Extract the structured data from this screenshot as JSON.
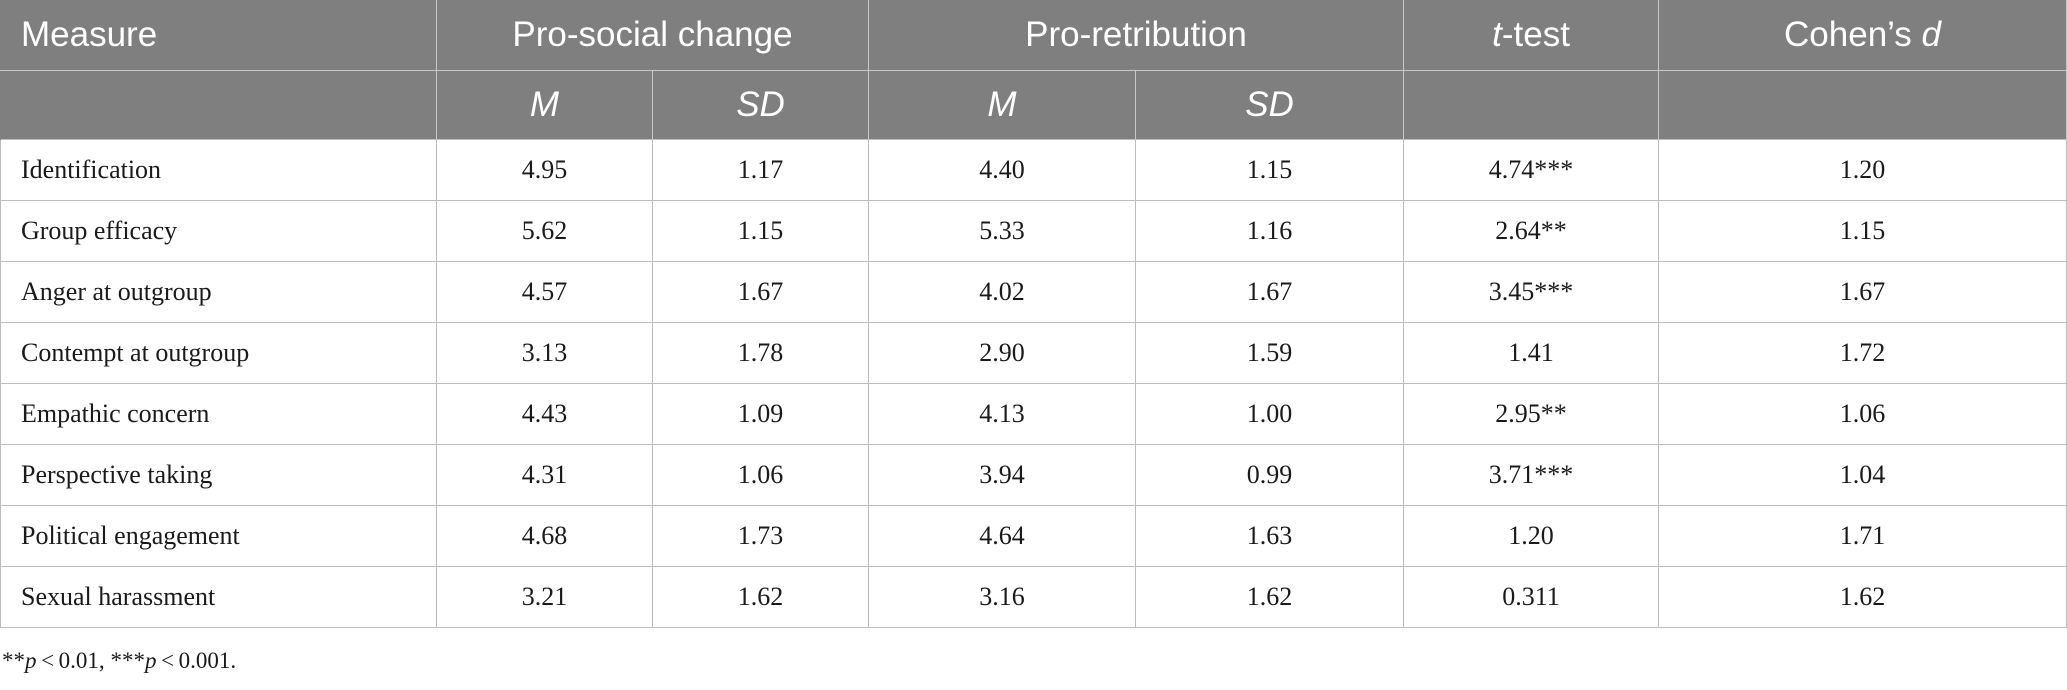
{
  "header": {
    "measure": "Measure",
    "pro_social": "Pro-social change",
    "pro_retribution": "Pro-retribution",
    "ttest_t": "t",
    "ttest_rest": "-test",
    "cohens_prefix": "Cohen’s ",
    "cohens_d": "d",
    "sub_m1": "M",
    "sub_sd1": "SD",
    "sub_m2": "M",
    "sub_sd2": "SD"
  },
  "rows": [
    {
      "measure": "Identification",
      "ps_m": "4.95",
      "ps_sd": "1.17",
      "pr_m": "4.40",
      "pr_sd": "1.15",
      "t": "4.74***",
      "d": "1.20"
    },
    {
      "measure": "Group efficacy",
      "ps_m": "5.62",
      "ps_sd": "1.15",
      "pr_m": "5.33",
      "pr_sd": "1.16",
      "t": "2.64**",
      "d": "1.15"
    },
    {
      "measure": "Anger at outgroup",
      "ps_m": "4.57",
      "ps_sd": "1.67",
      "pr_m": "4.02",
      "pr_sd": "1.67",
      "t": "3.45***",
      "d": "1.67"
    },
    {
      "measure": "Contempt at outgroup",
      "ps_m": "3.13",
      "ps_sd": "1.78",
      "pr_m": "2.90",
      "pr_sd": "1.59",
      "t": "1.41",
      "d": "1.72"
    },
    {
      "measure": "Empathic concern",
      "ps_m": "4.43",
      "ps_sd": "1.09",
      "pr_m": "4.13",
      "pr_sd": "1.00",
      "t": "2.95**",
      "d": "1.06"
    },
    {
      "measure": "Perspective taking",
      "ps_m": "4.31",
      "ps_sd": "1.06",
      "pr_m": "3.94",
      "pr_sd": "0.99",
      "t": "3.71***",
      "d": "1.04"
    },
    {
      "measure": "Political engagement",
      "ps_m": "4.68",
      "ps_sd": "1.73",
      "pr_m": "4.64",
      "pr_sd": "1.63",
      "t": "1.20",
      "d": "1.71"
    },
    {
      "measure": "Sexual harassment",
      "ps_m": "3.21",
      "ps_sd": "1.62",
      "pr_m": "3.16",
      "pr_sd": "1.62",
      "t": "0.311",
      "d": "1.62"
    }
  ],
  "footnote": {
    "part1_stars": "**",
    "part1_p": "p",
    "part1_val": " < 0.01, ",
    "part2_stars": "***",
    "part2_p": "p",
    "part2_val": " < 0.001."
  },
  "colors": {
    "header_bg": "#7f7f7f",
    "header_text": "#ffffff",
    "grid": "#bdbdbd"
  }
}
